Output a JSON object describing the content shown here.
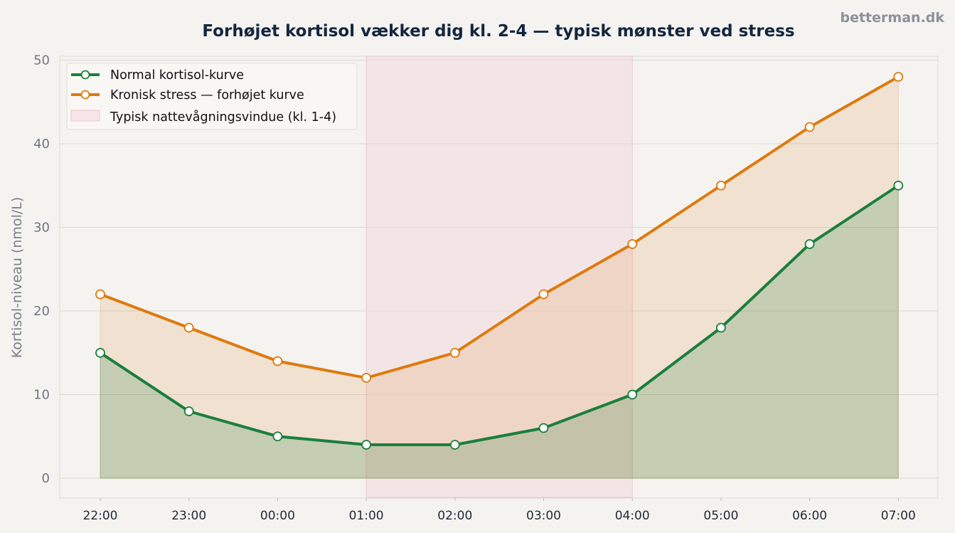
{
  "watermark": "betterman.dk",
  "chart_data": {
    "type": "line",
    "title": "Forhøjet kortisol vækker dig kl. 2-4 — typisk mønster ved stress",
    "xlabel": "",
    "ylabel": "Kortisol-niveau (nmol/L)",
    "categories": [
      "22:00",
      "23:00",
      "00:00",
      "01:00",
      "02:00",
      "03:00",
      "04:00",
      "05:00",
      "06:00",
      "07:00"
    ],
    "ylim": [
      0,
      50
    ],
    "yticks": [
      0,
      10,
      20,
      30,
      40,
      50
    ],
    "grid": "horizontal",
    "legend_position": "top-left",
    "series": [
      {
        "name": "Normal kortisol-kurve",
        "color": "#1a7f3c",
        "fill": "area",
        "values": [
          15,
          8,
          5,
          4,
          4,
          6,
          10,
          18,
          28,
          35
        ]
      },
      {
        "name": "Kronisk stress — forhøjet kurve",
        "color": "#dd7a0e",
        "fill": "area",
        "values": [
          22,
          18,
          14,
          12,
          15,
          22,
          28,
          35,
          42,
          48
        ]
      }
    ],
    "highlight_band": {
      "label": "Typisk nattevågningsvindue (kl. 1-4)",
      "from": "01:00",
      "to": "04:00",
      "color": "#f2d9dc"
    }
  }
}
